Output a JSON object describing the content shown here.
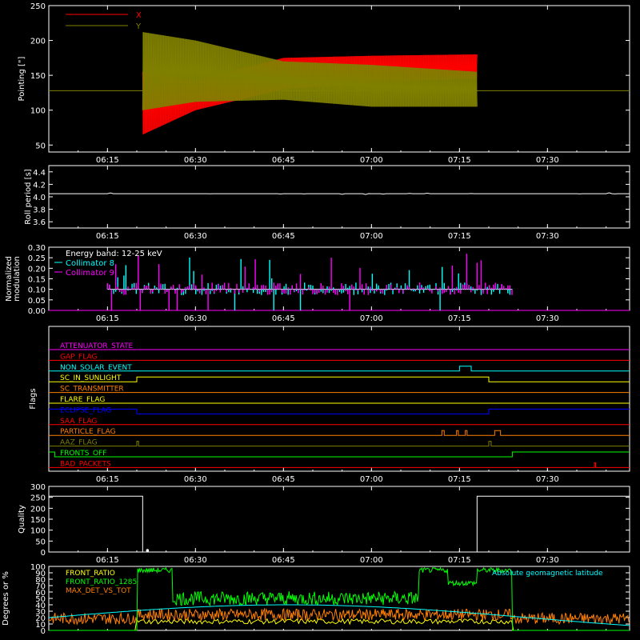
{
  "chart_data": [
    {
      "type": "line",
      "ylabel": "Pointing [\"]",
      "ylim": [
        40,
        250
      ],
      "yticks": [
        50,
        100,
        150,
        200,
        250
      ],
      "xticks": [
        "06:15",
        "06:30",
        "06:45",
        "07:00",
        "07:15",
        "07:30"
      ],
      "legend": [
        {
          "name": "X",
          "color": "#ff0000"
        },
        {
          "name": "Y",
          "color": "#808000"
        }
      ],
      "x_envelope": {
        "t": [
          "06:21",
          "06:30",
          "06:45",
          "07:00",
          "07:18"
        ],
        "min": [
          65,
          100,
          130,
          140,
          145
        ],
        "max": [
          155,
          142,
          175,
          178,
          180
        ]
      },
      "y_envelope": {
        "t": [
          "06:21",
          "06:30",
          "06:45",
          "07:00",
          "07:18"
        ],
        "min": [
          100,
          112,
          115,
          105,
          105
        ],
        "max": [
          212,
          200,
          170,
          165,
          155
        ]
      },
      "baseline_y": 128
    },
    {
      "type": "line",
      "ylabel": "Roll period [s]",
      "ylim": [
        3.5,
        4.5
      ],
      "yticks": [
        "3.6",
        "3.8",
        "4.0",
        "4.2",
        "4.4"
      ],
      "xticks": [
        "06:15",
        "06:30",
        "06:45",
        "07:00",
        "07:15",
        "07:30"
      ],
      "value": 4.05
    },
    {
      "type": "bar",
      "ylabel": "Normalized modulation",
      "ylim": [
        0,
        0.3
      ],
      "yticks": [
        "0.00",
        "0.05",
        "0.10",
        "0.15",
        "0.20",
        "0.25",
        "0.30"
      ],
      "xticks": [
        "06:15",
        "06:30",
        "06:45",
        "07:00",
        "07:15",
        "07:30"
      ],
      "legend": [
        {
          "name": "Energy band: 12-25 keV",
          "color": "#ffffff"
        },
        {
          "name": "Collimator 8",
          "color": "#00ffff"
        },
        {
          "name": "Collimator 9",
          "color": "#ff00ff"
        }
      ],
      "active_from": "06:15",
      "active_to": "07:24",
      "typical": 0.1
    },
    {
      "type": "line",
      "ylabel": "Flags",
      "xticks": [
        "06:15",
        "06:30",
        "06:45",
        "07:00",
        "07:15",
        "07:30"
      ],
      "flags": [
        {
          "name": "ATTENUATOR_STATE",
          "color": "#ff00ff"
        },
        {
          "name": "GAP_FLAG",
          "color": "#ff0000"
        },
        {
          "name": "NON_SOLAR_EVENT",
          "color": "#00ffff"
        },
        {
          "name": "SC_IN_SUNLIGHT",
          "color": "#ffff00"
        },
        {
          "name": "SC_TRANSMITTER",
          "color": "#ff8000"
        },
        {
          "name": "FLARE_FLAG",
          "color": "#ffff00"
        },
        {
          "name": "ECLIPSE_FLAG",
          "color": "#0000ff"
        },
        {
          "name": "SAA_FLAG",
          "color": "#ff0000"
        },
        {
          "name": "PARTICLE_FLAG",
          "color": "#ff8000"
        },
        {
          "name": "AAZ_FLAG",
          "color": "#808000"
        },
        {
          "name": "FRONTS_OFF",
          "color": "#00ff00"
        },
        {
          "name": "BAD_PACKETS",
          "color": "#ff0000"
        }
      ]
    },
    {
      "type": "line",
      "ylabel": "Quality",
      "ylim": [
        0,
        300
      ],
      "yticks": [
        0,
        50,
        100,
        150,
        200,
        250,
        300
      ],
      "xticks": [
        "06:15",
        "06:30",
        "06:45",
        "07:00",
        "07:15",
        "07:30"
      ],
      "segments": [
        {
          "from": "06:05",
          "to": "06:21",
          "value": 255
        },
        {
          "from": "06:21",
          "to": "07:18",
          "value": 0
        },
        {
          "from": "07:18",
          "to": "07:44",
          "value": 255
        }
      ]
    },
    {
      "type": "line",
      "ylabel": "Degrees or %",
      "ylim": [
        0,
        100
      ],
      "yticks": [
        0,
        10,
        20,
        30,
        40,
        50,
        60,
        70,
        80,
        90,
        100
      ],
      "legend": [
        {
          "name": "FRONT_RATIO",
          "color": "#ffff00"
        },
        {
          "name": "FRONT_RATIO_1285",
          "color": "#00ff00"
        },
        {
          "name": "MAX_DET_VS_TOT",
          "color": "#ff8000"
        },
        {
          "name": "Absolute geomagnetic latitude",
          "color": "#00ffff"
        }
      ]
    }
  ]
}
